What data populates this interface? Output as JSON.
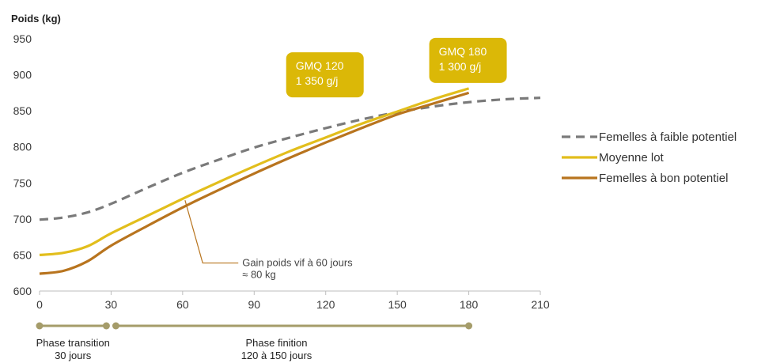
{
  "chart_data": {
    "type": "line",
    "ylabel": "Poids (kg)",
    "xlabel": "",
    "xlim": [
      0,
      210
    ],
    "ylim": [
      600,
      950
    ],
    "xticks": [
      0,
      30,
      60,
      90,
      120,
      150,
      180,
      210
    ],
    "yticks": [
      600,
      650,
      700,
      750,
      800,
      850,
      900,
      950
    ],
    "grid": false,
    "legend_position": "right",
    "series": [
      {
        "name": "Femelles à faible potentiel",
        "color": "#7a7a7a",
        "style": "dashed",
        "x": [
          0,
          10,
          20,
          30,
          45,
          60,
          75,
          90,
          105,
          120,
          135,
          150,
          165,
          180,
          195,
          210
        ],
        "y": [
          699,
          702,
          709,
          721,
          743,
          764,
          782,
          799,
          813,
          826,
          838,
          848,
          856,
          862,
          866,
          868
        ]
      },
      {
        "name": "Moyenne lot",
        "color": "#e2be1c",
        "style": "solid",
        "x": [
          0,
          10,
          20,
          30,
          45,
          60,
          75,
          90,
          105,
          120,
          135,
          150,
          165,
          180
        ],
        "y": [
          650,
          653,
          662,
          680,
          704,
          728,
          751,
          773,
          794,
          813,
          832,
          849,
          866,
          881
        ]
      },
      {
        "name": "Femelles à bon potentiel",
        "color": "#b8741e",
        "style": "solid",
        "x": [
          0,
          10,
          20,
          30,
          45,
          60,
          75,
          90,
          105,
          120,
          135,
          150,
          165,
          180
        ],
        "y": [
          624,
          628,
          641,
          663,
          690,
          716,
          740,
          763,
          785,
          806,
          826,
          845,
          860,
          875
        ]
      }
    ],
    "annotations": [
      {
        "id": "gmq120",
        "lines": [
          "GMQ 120",
          "1 350 g/j"
        ],
        "x": 120,
        "y": 900,
        "color": "#dbb807"
      },
      {
        "id": "gmq180",
        "lines": [
          "GMQ 180",
          "1 300 g/j"
        ],
        "x": 180,
        "y": 920,
        "color": "#dbb807"
      },
      {
        "id": "gain",
        "lines": [
          "Gain poids vif à 60 jours",
          "≈ 80 kg"
        ],
        "x": 85,
        "y": 640,
        "point_x": 61,
        "point_y": 726,
        "color": "#b8741e"
      }
    ],
    "phases": [
      {
        "label_lines": [
          "Phase transition",
          "30 jours"
        ],
        "start": 0,
        "end": 28
      },
      {
        "label_lines": [
          "Phase finition",
          "120 à 150 jours"
        ],
        "start": 32,
        "end": 180
      }
    ],
    "phase_color": "#a59c6a"
  }
}
